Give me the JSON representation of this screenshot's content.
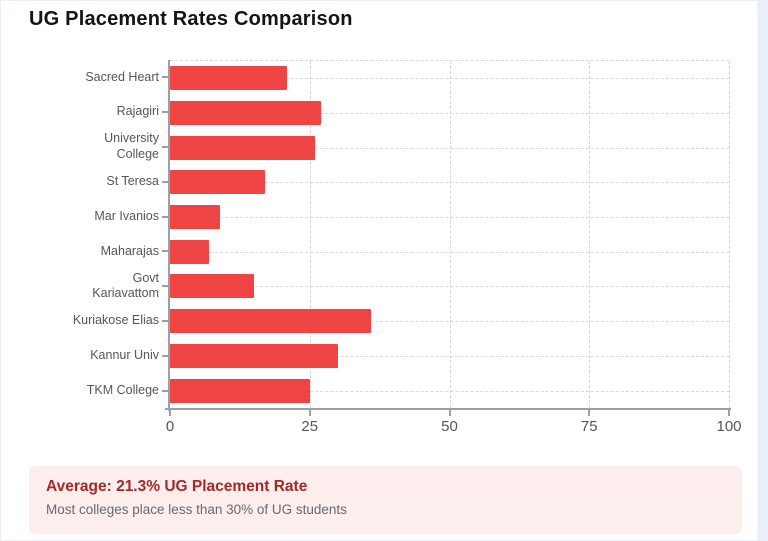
{
  "page": {
    "title": "UG Placement Rates Comparison"
  },
  "chart_data": {
    "type": "bar",
    "orientation": "horizontal",
    "title": "UG Placement Rates Comparison",
    "categories": [
      "Sacred Heart",
      "Rajagiri",
      "University\nCollege",
      "St Teresa",
      "Mar Ivanios",
      "Maharajas",
      "Govt\nKariavattom",
      "Kuriakose Elias",
      "Kannur Univ",
      "TKM College"
    ],
    "values": [
      21,
      27,
      26,
      17,
      9,
      7,
      15,
      36,
      30,
      25
    ],
    "x_ticks": [
      0,
      25,
      50,
      75,
      100
    ],
    "xlim": [
      0,
      100
    ],
    "xlabel": "",
    "ylabel": "",
    "grid": "dashed",
    "legend": "none",
    "bar_color": "#ef4444"
  },
  "summary": {
    "headline": "Average: 21.3% UG Placement Rate",
    "subtext": "Most colleges place less than 30% of UG students",
    "background_color": "#fdeeee",
    "headline_color": "#a32929"
  }
}
